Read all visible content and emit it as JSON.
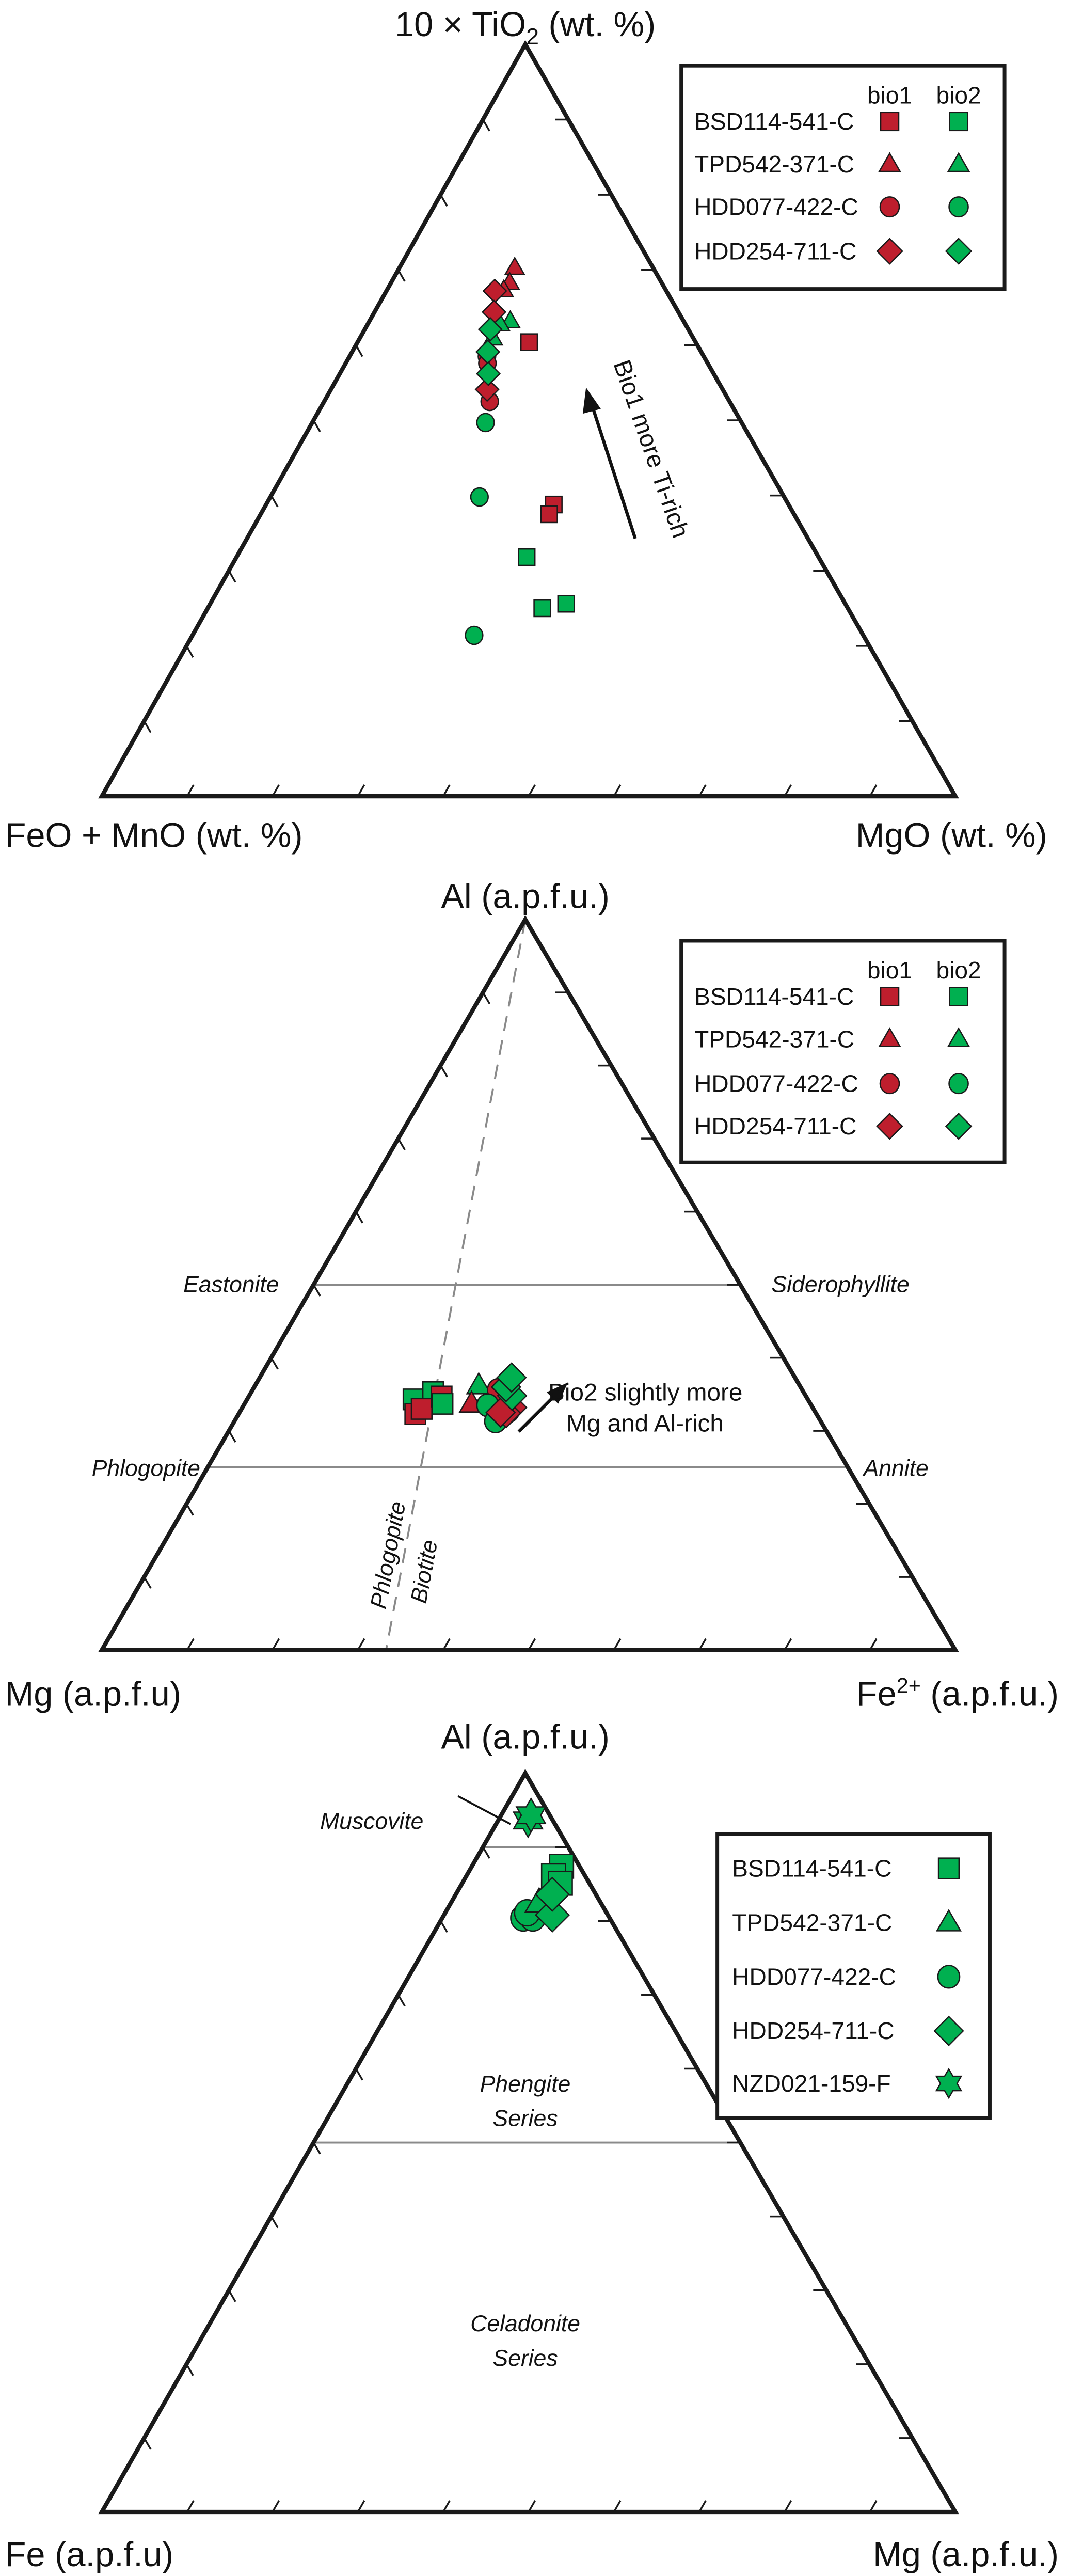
{
  "colors": {
    "bio1": "#BE1E2D",
    "bio2": "#00B050",
    "outline": "#1a1a1a",
    "grid": "#8a8a8a"
  },
  "chart_data": [
    {
      "type": "ternary",
      "apex_label": {
        "main": "10 × TiO",
        "sub": "2",
        "unit": " (wt. %)"
      },
      "left_label": "FeO + MnO (wt. %)",
      "right_label": "MgO (wt. %)",
      "ticks_percent": 10,
      "point_order": [
        "apex",
        "left",
        "right"
      ],
      "annotation": "Bio1 more Ti-rich",
      "legend": {
        "headers": [
          "bio1",
          "bio2"
        ],
        "entries": [
          {
            "name": "BSD114-541-C",
            "marker": "square"
          },
          {
            "name": "TPD542-371-C",
            "marker": "triangle"
          },
          {
            "name": "HDD077-422-C",
            "marker": "circle"
          },
          {
            "name": "HDD254-711-C",
            "marker": "diamond"
          }
        ]
      },
      "series": [
        {
          "sample": "HDD077-422-C",
          "group": "bio2",
          "marker": "circle",
          "points": [
            [
              49.7,
              30.0,
              20.3
            ],
            [
              39.8,
              35.7,
              24.5
            ],
            [
              21.4,
              45.6,
              33.0
            ]
          ]
        },
        {
          "sample": "BSD114-541-C",
          "group": "bio1",
          "marker": "square",
          "points": [
            [
              60.4,
              19.5,
              20.1
            ],
            [
              38.8,
              27.5,
              33.7
            ],
            [
              37.5,
              28.7,
              33.8
            ]
          ]
        },
        {
          "sample": "BSD114-541-C",
          "group": "bio2",
          "marker": "square",
          "points": [
            [
              31.8,
              34.2,
              34.0
            ],
            [
              25.0,
              35.8,
              39.2
            ],
            [
              25.6,
              32.7,
              41.7
            ]
          ]
        },
        {
          "sample": "TPD542-371-C",
          "group": "bio1",
          "marker": "triangle",
          "points": [
            [
              70.3,
              16.2,
              13.5
            ],
            [
              68.3,
              17.8,
              13.9
            ],
            [
              67.3,
              19.0,
              13.7
            ]
          ]
        },
        {
          "sample": "TPD542-371-C",
          "group": "bio2",
          "marker": "triangle",
          "points": [
            [
              63.2,
              20.3,
              16.5
            ],
            [
              62.8,
              21.7,
              15.5
            ],
            [
              60.9,
              23.5,
              15.6
            ]
          ]
        },
        {
          "sample": "HDD077-422-C",
          "group": "bio1",
          "marker": "circle",
          "points": [
            [
              58.5,
              25.4,
              16.1
            ],
            [
              57.6,
              25.8,
              16.6
            ],
            [
              52.5,
              28.1,
              19.4
            ]
          ]
        },
        {
          "sample": "HDD254-711-C",
          "group": "bio1",
          "marker": "diamond",
          "points": [
            [
              67.2,
              20.1,
              12.7
            ],
            [
              64.4,
              21.6,
              14.0
            ],
            [
              54.1,
              27.6,
              18.3
            ]
          ]
        },
        {
          "sample": "HDD254-711-C",
          "group": "bio2",
          "marker": "diamond",
          "points": [
            [
              62.1,
              23.2,
              14.7
            ],
            [
              59.1,
              25.0,
              15.9
            ],
            [
              56.2,
              26.4,
              17.4
            ]
          ]
        }
      ]
    },
    {
      "type": "ternary",
      "apex_label": {
        "main": "Al (a.p.f.u.)"
      },
      "left_label": "Mg (a.p.f.u)",
      "right_label": {
        "main": "Fe",
        "sup": "2+",
        "unit": " (a.p.f.u.)"
      },
      "ticks_percent": 10,
      "point_order": [
        "apex",
        "left",
        "right"
      ],
      "field_lines": [
        {
          "type": "horizontal",
          "apex_percent": 50,
          "left_label": "Eastonite",
          "right_label": "Siderophyllite"
        },
        {
          "type": "horizontal",
          "apex_percent": 25,
          "left_label": "Phlogopite",
          "right_label": "Annite"
        },
        {
          "type": "dashed",
          "right_percent_at_base": 33.3,
          "left_label": "Phlogopite",
          "right_label": "Biotite"
        }
      ],
      "annotation": [
        "Bio2 slightly more",
        "Mg and Al-rich"
      ],
      "legend": {
        "headers": [
          "bio1",
          "bio2"
        ],
        "entries": [
          {
            "name": "BSD114-541-C",
            "marker": "square"
          },
          {
            "name": "TPD542-371-C",
            "marker": "triangle"
          },
          {
            "name": "HDD077-422-C",
            "marker": "circle"
          },
          {
            "name": "HDD254-711-C",
            "marker": "diamond"
          }
        ]
      },
      "series": [
        {
          "sample": "BSD114-541-C",
          "group": "bio2",
          "marker": "square",
          "points": [
            [
              34.3,
              46.2,
              19.5
            ],
            [
              35.3,
              43.4,
              21.3
            ]
          ]
        },
        {
          "sample": "BSD114-541-C",
          "group": "bio1",
          "marker": "square",
          "points": [
            [
              32.3,
              47.0,
              20.7
            ],
            [
              33.0,
              45.9,
              21.1
            ],
            [
              34.7,
              42.7,
              22.6
            ]
          ]
        },
        {
          "sample": "BSD114-541-C",
          "group": "bio2",
          "marker": "square",
          "points": [
            [
              33.7,
              43.1,
              23.2
            ]
          ]
        },
        {
          "sample": "TPD542-371-C",
          "group": "bio2",
          "marker": "triangle",
          "points": [
            [
              36.2,
              37.6,
              26.2
            ]
          ]
        },
        {
          "sample": "TPD542-371-C",
          "group": "bio1",
          "marker": "triangle",
          "points": [
            [
              33.7,
              39.7,
              26.6
            ]
          ]
        },
        {
          "sample": "HDD077-422-C",
          "group": "bio1",
          "marker": "circle",
          "points": [
            [
              35.6,
              35.6,
              28.8
            ],
            [
              32.7,
              35.9,
              31.4
            ]
          ]
        },
        {
          "sample": "HDD077-422-C",
          "group": "bio2",
          "marker": "circle",
          "points": [
            [
              33.5,
              37.9,
              28.6
            ],
            [
              31.3,
              38.1,
              30.6
            ]
          ]
        },
        {
          "sample": "HDD254-711-C",
          "group": "bio1",
          "marker": "diamond",
          "points": [
            [
              33.2,
              35.2,
              31.6
            ],
            [
              32.4,
              36.3,
              31.3
            ],
            [
              32.5,
              36.9,
              30.6
            ]
          ]
        },
        {
          "sample": "HDD254-711-C",
          "group": "bio2",
          "marker": "diamond",
          "points": [
            [
              34.8,
              34.4,
              30.8
            ],
            [
              36.0,
              34.5,
              29.5
            ],
            [
              37.3,
              33.2,
              29.5
            ]
          ]
        }
      ]
    },
    {
      "type": "ternary",
      "apex_label": {
        "main": "Al (a.p.f.u.)"
      },
      "left_label": "Fe (a.p.f.u)",
      "right_label": "Mg (a.p.f.u.)",
      "ticks_percent": 10,
      "point_order": [
        "apex",
        "left",
        "right"
      ],
      "field_lines": [
        {
          "type": "horizontal",
          "apex_percent": 90
        },
        {
          "type": "horizontal",
          "apex_percent": 50
        }
      ],
      "field_labels": {
        "muscovite": "Muscovite",
        "phengite": [
          "Phengite",
          "Series"
        ],
        "celadonite": [
          "Celadonite",
          "Series"
        ]
      },
      "legend": {
        "entries": [
          {
            "name": "BSD114-541-C",
            "marker": "square"
          },
          {
            "name": "TPD542-371-C",
            "marker": "triangle"
          },
          {
            "name": "HDD077-422-C",
            "marker": "circle"
          },
          {
            "name": "HDD254-711-C",
            "marker": "diamond"
          },
          {
            "name": "NZD021-159-F",
            "marker": "star"
          }
        ]
      },
      "series": [
        {
          "sample": "HDD077-422-C",
          "group": "bio2",
          "marker": "circle",
          "points": [
            [
              80.4,
              10.1,
              9.5
            ],
            [
              80.4,
              9.0,
              10.6
            ],
            [
              81.1,
              9.3,
              9.6
            ]
          ]
        },
        {
          "sample": "TPD542-371-C",
          "group": "bio2",
          "marker": "triangle",
          "points": [
            [
              82.5,
              7.2,
              10.3
            ]
          ]
        },
        {
          "sample": "BSD114-541-C",
          "group": "bio2",
          "marker": "square",
          "points": [
            [
              87.4,
              2.1,
              10.5
            ],
            [
              86.1,
              3.7,
              10.2
            ],
            [
              85.1,
              3.4,
              11.5
            ]
          ]
        },
        {
          "sample": "HDD254-711-C",
          "group": "bio2",
          "marker": "diamond",
          "points": [
            [
              80.8,
              6.5,
              12.7
            ],
            [
              83.6,
              5.1,
              11.3
            ]
          ]
        },
        {
          "sample": "NZD021-159-F",
          "group": "bio2",
          "marker": "star",
          "points": [
            [
              93.6,
              2.9,
              3.5
            ],
            [
              94.3,
              2.2,
              3.5
            ]
          ]
        }
      ]
    }
  ]
}
